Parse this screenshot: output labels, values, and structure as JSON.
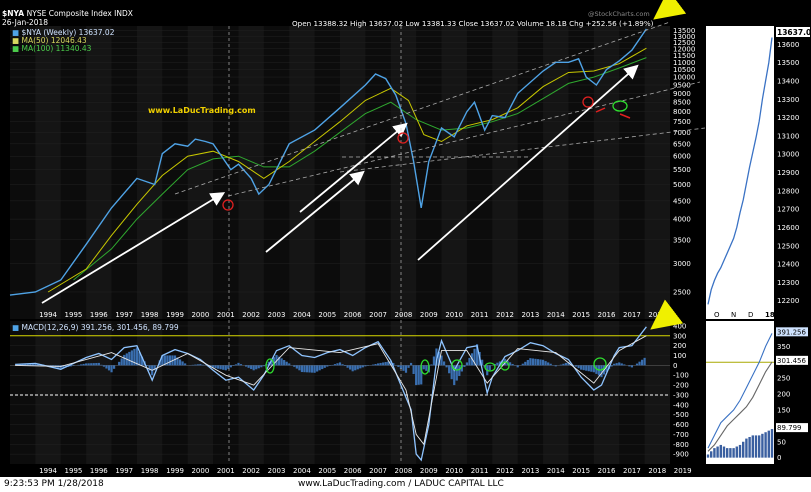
{
  "header": {
    "symbol": "$NYA",
    "title": "NYSE Composite Index  INDX",
    "date": "26-Jan-2018",
    "ohlc": "Open 13388.32  High 13637.02  Low 13381.33  Close 13637.02  Volume 18.1B  Chg +252.56 (+1.89%)",
    "source": "@StockCharts.com",
    "watermark": "www.LaDucTrading.com"
  },
  "legend": {
    "price": "$NYA (Weekly) 13637.02",
    "ma50": "MA(50) 12046.43",
    "ma100": "MA(100) 11340.43",
    "macd": "MACD(12,26,9) 391.256, 301.456, 89.799"
  },
  "colors": {
    "price": "#4fa3e6",
    "ma50": "#c8c800",
    "ma100": "#2fa82f",
    "panel_bg": "#0c0c0c",
    "zoom_bg": "#ffffff",
    "macd_hist": "#3a6fb0"
  },
  "chart_data": [
    {
      "type": "line",
      "panel": "price",
      "log_scale": true,
      "ylim": [
        2100,
        13900
      ],
      "y_ticks": [
        2500,
        3000,
        3500,
        4000,
        4500,
        5000,
        5500,
        6000,
        6500,
        7000,
        7500,
        8000,
        8500,
        9000,
        9500,
        10000,
        10500,
        11000,
        11500,
        12000,
        12500,
        13000,
        13500
      ],
      "x_labels": [
        "1994",
        "1995",
        "1996",
        "1997",
        "1998",
        "1999",
        "2000",
        "2001",
        "2002",
        "2003",
        "2004",
        "2005",
        "2006",
        "2007",
        "2008",
        "2009",
        "2010",
        "2011",
        "2012",
        "2013",
        "2014",
        "2015",
        "2016",
        "2017",
        "2018"
      ],
      "series": [
        {
          "name": "$NYA (Weekly)",
          "x": [
            1993.0,
            1994.0,
            1995.0,
            1996.0,
            1997.0,
            1998.0,
            1998.7,
            1999.0,
            1999.5,
            2000.0,
            2000.3,
            2000.7,
            2001.0,
            2001.7,
            2002.0,
            2002.5,
            2002.8,
            2003.2,
            2004.0,
            2005.0,
            2006.0,
            2007.0,
            2007.4,
            2007.8,
            2008.2,
            2008.6,
            2008.9,
            2009.2,
            2009.5,
            2010.0,
            2010.5,
            2011.0,
            2011.3,
            2011.7,
            2012.0,
            2012.5,
            2013.0,
            2014.0,
            2014.5,
            2015.0,
            2015.4,
            2015.7,
            2016.1,
            2016.5,
            2017.0,
            2017.5,
            2018.07
          ],
          "y": [
            2450,
            2500,
            2700,
            3400,
            4300,
            5200,
            5000,
            6100,
            6500,
            6400,
            6700,
            6600,
            6500,
            5500,
            5700,
            5200,
            4700,
            5000,
            6500,
            7100,
            8200,
            9500,
            10200,
            9900,
            8900,
            7400,
            5800,
            4300,
            5800,
            7200,
            6800,
            8000,
            8500,
            7100,
            7800,
            7700,
            9000,
            10400,
            11000,
            11000,
            11250,
            10000,
            9500,
            10500,
            11100,
            11900,
            13637
          ]
        },
        {
          "name": "MA(50)",
          "x": [
            1994.5,
            1996.0,
            1997.0,
            1998.0,
            1999.0,
            2000.0,
            2001.0,
            2002.0,
            2003.0,
            2004.0,
            2005.0,
            2006.0,
            2007.0,
            2008.0,
            2008.7,
            2009.3,
            2010.0,
            2011.0,
            2012.0,
            2013.0,
            2014.0,
            2015.0,
            2016.0,
            2017.0,
            2018.07
          ],
          "y": [
            2500,
            2900,
            3600,
            4400,
            5300,
            6000,
            6200,
            5800,
            5200,
            5800,
            6600,
            7500,
            8600,
            9300,
            8600,
            6900,
            6600,
            7300,
            7600,
            8200,
            9400,
            10300,
            10400,
            10900,
            12046
          ]
        },
        {
          "name": "MA(100)",
          "x": [
            1995.5,
            1997.0,
            1998.0,
            1999.0,
            2000.0,
            2001.0,
            2002.0,
            2003.0,
            2004.0,
            2005.0,
            2006.0,
            2007.0,
            2008.0,
            2009.0,
            2010.0,
            2011.0,
            2012.0,
            2013.0,
            2014.0,
            2015.0,
            2016.0,
            2017.0,
            2018.07
          ],
          "y": [
            2700,
            3300,
            4000,
            4700,
            5500,
            5900,
            6000,
            5600,
            5600,
            6200,
            7000,
            7900,
            8500,
            7600,
            7100,
            7200,
            7500,
            7900,
            8700,
            9600,
            10000,
            10600,
            11340
          ]
        }
      ]
    },
    {
      "type": "line",
      "panel": "macd",
      "ylim": [
        -1000,
        450
      ],
      "y_ticks": [
        -900,
        -800,
        -700,
        -600,
        -500,
        -400,
        -300,
        -200,
        -100,
        0,
        100,
        200,
        300,
        400
      ],
      "x_labels": [
        "1994",
        "1995",
        "1996",
        "1997",
        "1998",
        "1999",
        "2000",
        "2001",
        "2002",
        "2003",
        "2004",
        "2005",
        "2006",
        "2007",
        "2008",
        "2009",
        "2010",
        "2011",
        "2012",
        "2013",
        "2014",
        "2015",
        "2016",
        "2017",
        "2018",
        "2019"
      ],
      "series": [
        {
          "name": "MACD",
          "x": [
            1993.2,
            1994.0,
            1995.0,
            1996.0,
            1996.5,
            1997.0,
            1997.5,
            1998.0,
            1998.6,
            1999.0,
            1999.5,
            2000.0,
            2000.5,
            2001.0,
            2001.5,
            2002.0,
            2002.6,
            2003.0,
            2003.5,
            2004.0,
            2004.5,
            2005.0,
            2005.5,
            2006.0,
            2006.5,
            2007.0,
            2007.5,
            2008.0,
            2008.4,
            2008.8,
            2009.0,
            2009.2,
            2009.5,
            2009.8,
            2010.0,
            2010.5,
            2011.0,
            2011.4,
            2011.8,
            2012.0,
            2012.5,
            2013.0,
            2013.5,
            2014.0,
            2014.5,
            2015.0,
            2015.5,
            2016.0,
            2016.3,
            2016.8,
            2017.0,
            2017.5,
            2018.07
          ],
          "y": [
            10,
            20,
            -40,
            80,
            120,
            60,
            180,
            200,
            -150,
            100,
            160,
            120,
            60,
            -50,
            -150,
            -120,
            -250,
            -100,
            150,
            200,
            100,
            80,
            130,
            160,
            100,
            180,
            240,
            50,
            -200,
            -450,
            -900,
            -960,
            -600,
            50,
            250,
            -50,
            180,
            200,
            -280,
            -120,
            90,
            150,
            230,
            200,
            120,
            60,
            -120,
            -250,
            -200,
            100,
            180,
            200,
            391
          ]
        },
        {
          "name": "Signal",
          "x": [
            1993.2,
            1995.0,
            1997.0,
            1998.6,
            2000.0,
            2001.5,
            2002.6,
            2004.0,
            2006.0,
            2007.5,
            2008.6,
            2009.0,
            2009.3,
            2010.0,
            2011.0,
            2011.8,
            2013.0,
            2014.5,
            2016.0,
            2017.0,
            2018.07
          ],
          "y": [
            0,
            -10,
            130,
            -50,
            120,
            -100,
            -200,
            180,
            130,
            220,
            -250,
            -700,
            -800,
            150,
            150,
            -180,
            170,
            130,
            -180,
            150,
            301
          ]
        }
      ],
      "histogram": {
        "name": "MACD histogram",
        "last": 89.799
      },
      "reference_lines": [
        300,
        -300
      ]
    },
    {
      "type": "line",
      "panel": "zoom-price",
      "ylim": [
        12100,
        13700
      ],
      "y_ticks": [
        12200,
        12300,
        12400,
        12500,
        12600,
        12700,
        12800,
        12900,
        13000,
        13100,
        13200,
        13300,
        13400,
        13500,
        13600
      ],
      "x_labels": [
        "O",
        "N",
        "D",
        "18"
      ],
      "series": [
        {
          "name": "$NYA (Daily)",
          "x": [
            0,
            1,
            2,
            3,
            4,
            5,
            6,
            7,
            8,
            9,
            10,
            11,
            12,
            13,
            14,
            15,
            16,
            17,
            18,
            19,
            20
          ],
          "y": [
            12180,
            12260,
            12310,
            12350,
            12380,
            12420,
            12460,
            12500,
            12540,
            12600,
            12680,
            12750,
            12840,
            12930,
            13010,
            13090,
            13180,
            13300,
            13400,
            13500,
            13637
          ]
        }
      ],
      "last_label": "13637.02"
    },
    {
      "type": "line",
      "panel": "zoom-macd",
      "ylim": [
        -20,
        430
      ],
      "y_ticks": [
        0,
        50,
        100,
        150,
        200,
        250,
        300,
        350,
        400
      ],
      "x_labels": [
        "O",
        "N",
        "D",
        "18"
      ],
      "series": [
        {
          "name": "MACD",
          "x": [
            0,
            2,
            4,
            6,
            8,
            10,
            12,
            14,
            16,
            18,
            20
          ],
          "y": [
            30,
            70,
            110,
            130,
            150,
            180,
            220,
            260,
            300,
            350,
            391
          ]
        },
        {
          "name": "Signal",
          "x": [
            0,
            2,
            4,
            6,
            8,
            10,
            12,
            14,
            16,
            18,
            20
          ],
          "y": [
            20,
            40,
            70,
            100,
            120,
            140,
            160,
            190,
            230,
            270,
            301
          ]
        }
      ],
      "labels": [
        "391.256",
        "301.456",
        "89.799"
      ]
    }
  ],
  "footer": {
    "timestamp": "9:23:53 PM 1/28/2018",
    "site": "www.LaDucTrading.com / LADUC CAPITAL LLC"
  }
}
